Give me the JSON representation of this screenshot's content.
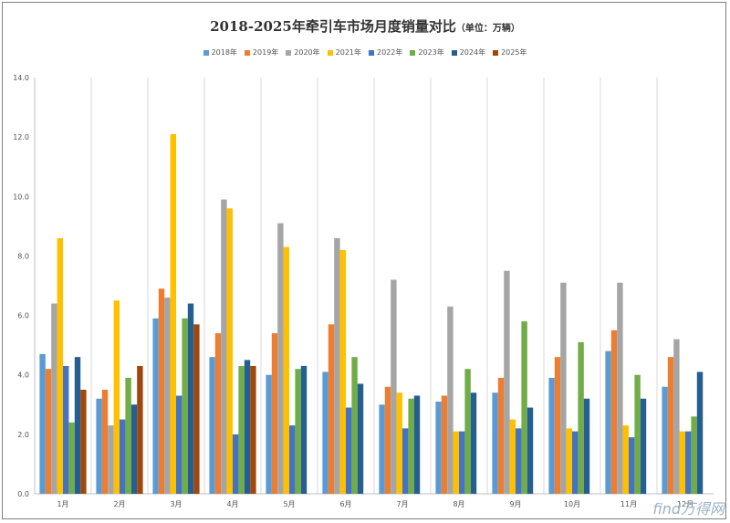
{
  "chart_data": {
    "type": "bar",
    "title": "2018-2025年牵引车市场月度销量对比",
    "unit_note": "（单位：万辆）",
    "categories": [
      "1月",
      "2月",
      "3月",
      "4月",
      "5月",
      "6月",
      "7月",
      "8月",
      "9月",
      "10月",
      "11月",
      "12月"
    ],
    "ylim": [
      0,
      14
    ],
    "yticks": [
      "0.0",
      "2.0",
      "4.0",
      "6.0",
      "8.0",
      "10.0",
      "12.0",
      "14.0"
    ],
    "grid": "vertical",
    "legend_position": "top",
    "series": [
      {
        "name": "2018年",
        "color": "#5b9bd5",
        "values": [
          4.7,
          3.2,
          5.9,
          4.6,
          4.0,
          4.1,
          3.0,
          3.1,
          3.4,
          3.9,
          4.8,
          3.6
        ]
      },
      {
        "name": "2019年",
        "color": "#ed7d31",
        "values": [
          4.2,
          3.5,
          6.9,
          5.4,
          5.4,
          5.7,
          3.6,
          3.3,
          3.9,
          4.6,
          5.5,
          4.6
        ]
      },
      {
        "name": "2020年",
        "color": "#a5a5a5",
        "values": [
          6.4,
          2.3,
          6.6,
          9.9,
          9.1,
          8.6,
          7.2,
          6.3,
          7.5,
          7.1,
          7.1,
          5.2
        ]
      },
      {
        "name": "2021年",
        "color": "#ffc000",
        "values": [
          8.6,
          6.5,
          12.1,
          9.6,
          8.3,
          8.2,
          3.4,
          2.1,
          2.5,
          2.2,
          2.3,
          2.1
        ]
      },
      {
        "name": "2022年",
        "color": "#4472c4",
        "values": [
          4.3,
          2.5,
          3.3,
          2.0,
          2.3,
          2.9,
          2.2,
          2.1,
          2.2,
          2.1,
          1.9,
          2.1
        ]
      },
      {
        "name": "2023年",
        "color": "#70ad47",
        "values": [
          2.4,
          3.9,
          5.9,
          4.3,
          4.2,
          4.6,
          3.2,
          4.2,
          5.8,
          5.1,
          4.0,
          2.6
        ]
      },
      {
        "name": "2024年",
        "color": "#255e91",
        "values": [
          4.6,
          3.0,
          6.4,
          4.5,
          4.3,
          3.7,
          3.3,
          3.4,
          2.9,
          3.2,
          3.2,
          4.1
        ]
      },
      {
        "name": "2025年",
        "color": "#9e480e",
        "values": [
          3.5,
          4.3,
          5.7,
          4.3,
          null,
          null,
          null,
          null,
          null,
          null,
          null,
          null
        ]
      }
    ]
  },
  "watermark": "find万得网"
}
